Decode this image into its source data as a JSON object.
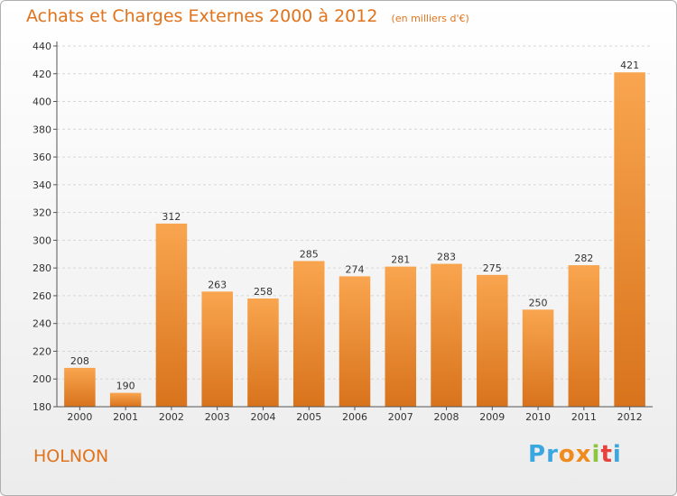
{
  "header": {
    "title": "Achats et Charges Externes 2000 à 2012",
    "subtitle": "(en milliers d'€)"
  },
  "town": "HOLNON",
  "logo": {
    "text": "Proxiti",
    "letters": [
      "P",
      "r",
      "o",
      "x",
      "i",
      "t",
      "i"
    ],
    "colors": [
      "#3aa7e0",
      "#3aa7e0",
      "#f08a1c",
      "#f08a1c",
      "#8cc63f",
      "#e8413c",
      "#3aa7e0"
    ]
  },
  "chart_data": {
    "type": "bar",
    "title": "Achats et Charges Externes 2000 à 2012",
    "subtitle": "(en milliers d'€)",
    "categories": [
      "2000",
      "2001",
      "2002",
      "2003",
      "2004",
      "2005",
      "2006",
      "2007",
      "2008",
      "2009",
      "2010",
      "2011",
      "2012"
    ],
    "values": [
      208,
      190,
      312,
      263,
      258,
      285,
      274,
      281,
      283,
      275,
      250,
      282,
      421
    ],
    "ylim": [
      180,
      440
    ],
    "yticks": [
      180,
      200,
      220,
      240,
      260,
      280,
      300,
      320,
      340,
      360,
      380,
      400,
      420,
      440
    ],
    "grid": true,
    "bar_color": "#f08a2a"
  }
}
